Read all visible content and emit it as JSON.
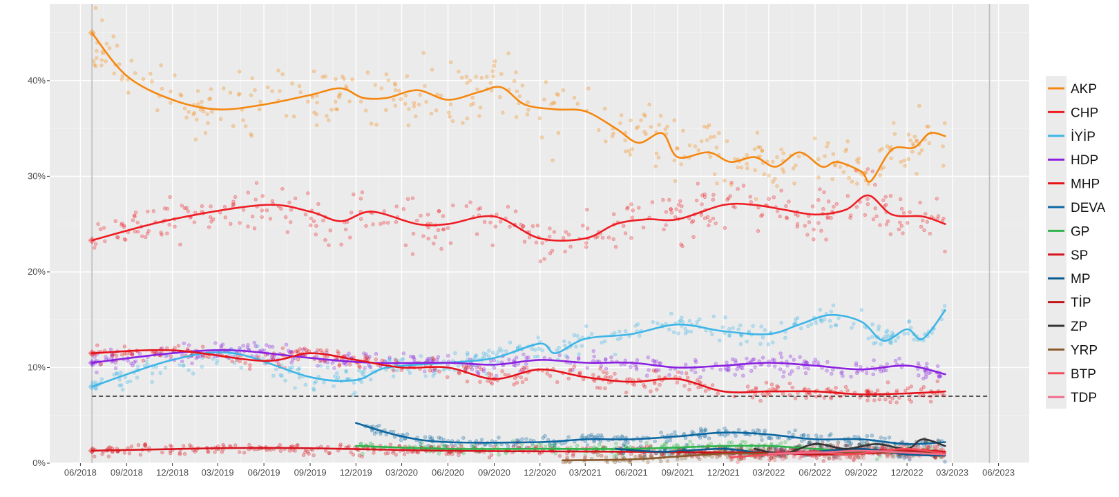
{
  "chart_data": {
    "type": "line",
    "title": "",
    "xlabel": "",
    "ylabel": "",
    "x_range": [
      "2018-04-01",
      "2023-08-01"
    ],
    "ylim": [
      0,
      48
    ],
    "y_ticks": [
      0,
      10,
      20,
      30,
      40
    ],
    "y_tick_labels": [
      "0%",
      "10%",
      "20%",
      "30%",
      "40%"
    ],
    "x_ticks": [
      "2018-06-01",
      "2018-09-01",
      "2018-12-01",
      "2019-03-01",
      "2019-06-01",
      "2019-09-01",
      "2019-12-01",
      "2020-03-01",
      "2020-06-01",
      "2020-09-01",
      "2020-12-01",
      "2021-03-01",
      "2021-06-01",
      "2021-09-01",
      "2021-12-01",
      "2022-03-01",
      "2022-06-01",
      "2022-09-01",
      "2022-12-01",
      "2023-03-01",
      "2023-06-01"
    ],
    "x_tick_labels": [
      "06/2018",
      "09/2018",
      "12/2018",
      "03/2019",
      "06/2019",
      "09/2019",
      "12/2019",
      "03/2020",
      "06/2020",
      "09/2020",
      "12/2020",
      "03/2021",
      "06/2021",
      "09/2021",
      "12/2021",
      "03/2022",
      "06/2022",
      "09/2022",
      "12/2022",
      "03/2023",
      "06/2023"
    ],
    "grid": true,
    "background": "#ebebeb",
    "legend_position": "right",
    "vertical_lines": [
      "2018-06-24",
      "2023-05-14"
    ],
    "threshold_line": {
      "y": 7,
      "style": "dashed",
      "color": "#555555"
    },
    "series": [
      {
        "name": "AKP",
        "color": "#f5870f",
        "x": [
          "2018-06-24",
          "2018-09-01",
          "2018-12-01",
          "2019-03-01",
          "2019-06-01",
          "2019-09-01",
          "2019-11-01",
          "2019-12-15",
          "2020-02-01",
          "2020-04-01",
          "2020-06-01",
          "2020-08-01",
          "2020-09-15",
          "2020-11-01",
          "2021-01-01",
          "2021-03-01",
          "2021-05-01",
          "2021-06-15",
          "2021-08-01",
          "2021-09-01",
          "2021-11-01",
          "2021-12-15",
          "2022-02-01",
          "2022-03-15",
          "2022-05-01",
          "2022-06-15",
          "2022-07-15",
          "2022-09-01",
          "2022-09-20",
          "2022-11-01",
          "2022-12-15",
          "2023-01-15",
          "2023-02-15"
        ],
        "y": [
          45,
          40.5,
          38,
          37,
          37.5,
          38.5,
          39.2,
          38.2,
          38.2,
          39,
          38,
          38.8,
          39.3,
          37.5,
          37,
          36.8,
          35,
          33.5,
          34.5,
          32,
          32.5,
          31.5,
          32,
          31,
          32.5,
          31,
          31.5,
          30.5,
          29.5,
          32.8,
          33,
          34.5,
          34.2
        ]
      },
      {
        "name": "CHP",
        "color": "#ee1c23",
        "x": [
          "2018-06-24",
          "2018-12-01",
          "2019-06-01",
          "2019-09-01",
          "2019-11-01",
          "2020-01-01",
          "2020-04-01",
          "2020-06-01",
          "2020-09-01",
          "2020-12-01",
          "2021-03-01",
          "2021-05-01",
          "2021-07-01",
          "2021-09-01",
          "2021-12-01",
          "2022-02-01",
          "2022-04-01",
          "2022-06-01",
          "2022-08-01",
          "2022-09-15",
          "2022-11-01",
          "2023-01-01",
          "2023-02-15"
        ],
        "y": [
          23.3,
          25.5,
          27,
          26.3,
          25.3,
          26.3,
          25,
          25,
          25.8,
          23.5,
          23.5,
          25,
          25.5,
          25.5,
          27,
          27,
          26.5,
          26,
          26.5,
          28,
          26,
          25.8,
          25
        ]
      },
      {
        "name": "İYİP",
        "color": "#3db5e6",
        "x": [
          "2018-06-24",
          "2018-12-01",
          "2019-04-01",
          "2019-09-01",
          "2019-12-01",
          "2020-02-01",
          "2020-06-01",
          "2020-09-01",
          "2020-12-01",
          "2021-01-01",
          "2021-03-01",
          "2021-06-01",
          "2021-09-01",
          "2021-12-01",
          "2022-03-01",
          "2022-05-01",
          "2022-07-01",
          "2022-09-01",
          "2022-10-15",
          "2022-12-01",
          "2023-01-01",
          "2023-02-15"
        ],
        "y": [
          8,
          10.8,
          11.5,
          9,
          8.7,
          10,
          10.5,
          11,
          12.5,
          11.5,
          13,
          13.5,
          14.5,
          13.8,
          13.5,
          14.5,
          15.5,
          14.8,
          12.8,
          14,
          13,
          16
        ]
      },
      {
        "name": "HDP",
        "color": "#8a20e0",
        "x": [
          "2018-06-24",
          "2018-12-01",
          "2019-04-01",
          "2019-09-01",
          "2020-01-01",
          "2020-06-01",
          "2020-09-01",
          "2020-12-01",
          "2021-03-01",
          "2021-06-01",
          "2021-09-01",
          "2021-12-01",
          "2022-03-01",
          "2022-06-01",
          "2022-09-01",
          "2022-12-01",
          "2023-02-15"
        ],
        "y": [
          10.5,
          11.5,
          11.8,
          11,
          10.5,
          10.5,
          10.3,
          10.8,
          10.5,
          10.5,
          10,
          10.2,
          10.5,
          10.2,
          9.8,
          10.2,
          9.3
        ]
      },
      {
        "name": "MHP",
        "color": "#e5121a",
        "x": [
          "2018-06-24",
          "2018-12-01",
          "2019-06-01",
          "2019-09-01",
          "2019-12-01",
          "2020-03-01",
          "2020-06-01",
          "2020-09-01",
          "2020-12-01",
          "2021-03-01",
          "2021-06-01",
          "2021-09-01",
          "2021-12-01",
          "2022-03-01",
          "2022-06-01",
          "2022-09-01",
          "2022-12-01",
          "2023-02-15"
        ],
        "y": [
          11.5,
          11.8,
          10.7,
          11.5,
          10.8,
          10,
          10,
          8.8,
          9.8,
          9,
          8.5,
          8.8,
          7.5,
          7.5,
          7.5,
          7.2,
          7.3,
          7.5
        ]
      },
      {
        "name": "DEVA",
        "color": "#0c67a1",
        "x": [
          "2019-12-01",
          "2020-03-01",
          "2020-06-01",
          "2020-12-01",
          "2021-03-01",
          "2021-06-01",
          "2021-09-01",
          "2021-12-01",
          "2022-03-01",
          "2022-06-01",
          "2022-09-01",
          "2022-12-01",
          "2023-02-15"
        ],
        "y": [
          4.2,
          2.8,
          2.2,
          2.2,
          2.5,
          2.5,
          2.8,
          3.2,
          3,
          2.5,
          2.5,
          2,
          2.2
        ]
      },
      {
        "name": "GP",
        "color": "#2eb34a",
        "x": [
          "2019-12-01",
          "2020-06-01",
          "2020-12-01",
          "2021-06-01",
          "2021-12-01",
          "2022-03-01",
          "2022-06-01",
          "2022-09-01",
          "2022-12-01",
          "2023-02-15"
        ],
        "y": [
          1.8,
          1.5,
          1.5,
          1.5,
          1.8,
          1.8,
          1.5,
          1.2,
          1.3,
          1.2
        ]
      },
      {
        "name": "SP",
        "color": "#d7141e",
        "x": [
          "2018-06-24",
          "2019-06-01",
          "2020-06-01",
          "2021-06-01",
          "2022-03-01",
          "2022-06-01",
          "2022-09-01",
          "2022-12-01",
          "2023-02-15"
        ],
        "y": [
          1.3,
          1.6,
          1.3,
          1.2,
          1.1,
          1.2,
          1.3,
          1.4,
          1.2
        ]
      },
      {
        "name": "MP",
        "color": "#0a5a8f",
        "x": [
          "2021-05-01",
          "2021-08-01",
          "2021-12-01",
          "2022-03-01",
          "2022-06-01",
          "2022-09-01",
          "2022-12-01",
          "2023-02-15"
        ],
        "y": [
          1.5,
          1.2,
          1.5,
          1,
          1.2,
          1.5,
          0.9,
          0.8
        ]
      },
      {
        "name": "TİP",
        "color": "#c0141a",
        "x": [
          "2021-09-01",
          "2021-12-01",
          "2022-03-01",
          "2022-06-01",
          "2022-09-01",
          "2022-12-01",
          "2023-02-15"
        ],
        "y": [
          1.2,
          1,
          1.1,
          0.9,
          1,
          1.2,
          1
        ]
      },
      {
        "name": "ZP",
        "color": "#333333",
        "x": [
          "2022-02-01",
          "2022-04-01",
          "2022-06-01",
          "2022-08-01",
          "2022-10-01",
          "2022-12-01",
          "2023-01-01",
          "2023-02-15"
        ],
        "y": [
          1.5,
          1,
          2,
          1.5,
          2,
          1.5,
          2.5,
          1.8
        ]
      },
      {
        "name": "YRP",
        "color": "#8b5a2b",
        "x": [
          "2021-01-15",
          "2021-06-01",
          "2021-09-01",
          "2021-12-01",
          "2022-03-01",
          "2022-06-01",
          "2022-09-01",
          "2022-12-01",
          "2023-02-15"
        ],
        "y": [
          0.3,
          0.4,
          0.7,
          1,
          1,
          1.1,
          1.2,
          1.1,
          1
        ]
      },
      {
        "name": "BTP",
        "color": "#f24d5a",
        "x": [
          "2021-12-15",
          "2022-02-01",
          "2022-04-01",
          "2022-06-01",
          "2022-08-01",
          "2022-10-01",
          "2022-12-01",
          "2023-02-15"
        ],
        "y": [
          0.6,
          0.8,
          1,
          1.2,
          0.9,
          1.2,
          1.5,
          1
        ]
      },
      {
        "name": "TDP",
        "color": "#f06f90",
        "x": [
          "2022-03-01",
          "2022-06-01",
          "2022-09-01",
          "2022-12-01",
          "2023-02-15"
        ],
        "y": [
          1,
          1.1,
          1.3,
          1.1,
          0.9
        ]
      }
    ]
  }
}
